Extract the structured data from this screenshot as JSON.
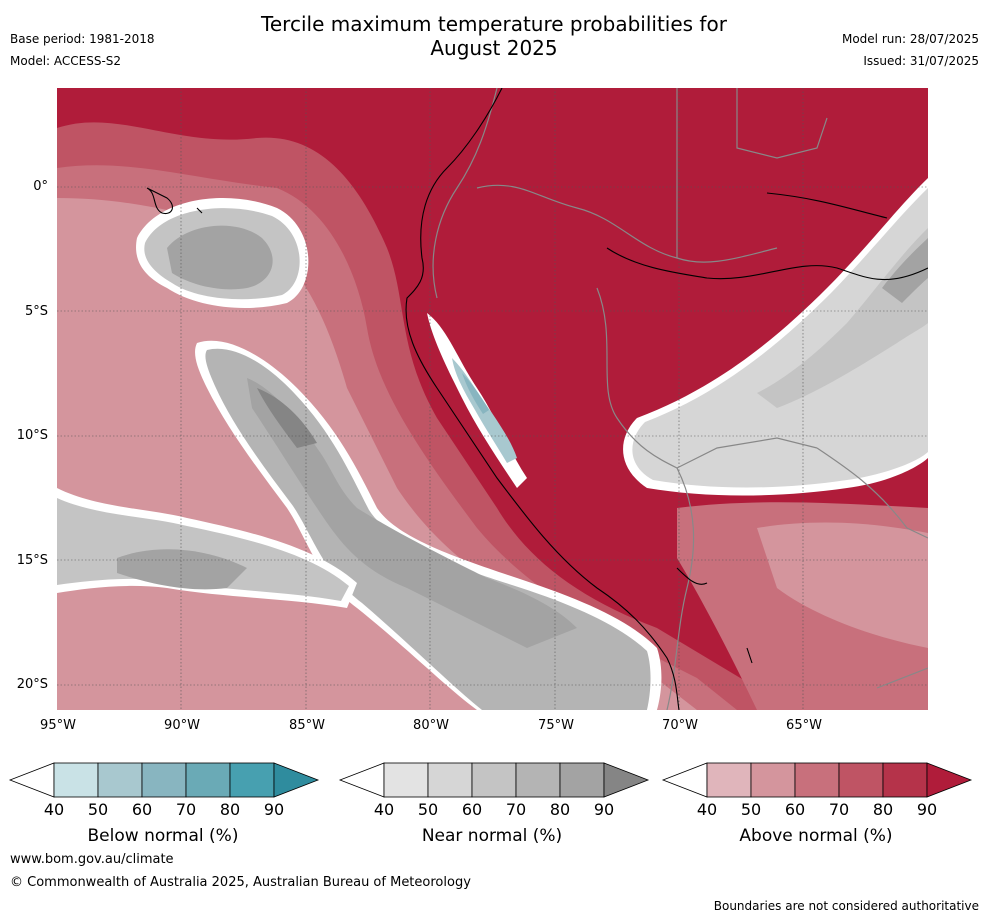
{
  "header": {
    "title_line1": "Tercile maximum temperature probabilities for",
    "title_line2": "August 2025",
    "base_period": "Base period: 1981-2018",
    "model": "Model: ACCESS-S2",
    "model_run": "Model run: 28/07/2025",
    "issued": "Issued: 31/07/2025"
  },
  "map": {
    "lat_ticks": [
      "0°",
      "5°S",
      "10°S",
      "15°S",
      "20°S"
    ],
    "lon_ticks": [
      "95°W",
      "90°W",
      "85°W",
      "80°W",
      "75°W",
      "70°W",
      "65°W"
    ],
    "extent": {
      "lon_min": -95,
      "lon_max": -60,
      "lat_min": -21,
      "lat_max": 4
    }
  },
  "colorbars": [
    {
      "label": "Below normal (%)",
      "ticks": [
        "40",
        "50",
        "60",
        "70",
        "80",
        "90"
      ],
      "colors": [
        "#c9e2e6",
        "#a8c8cf",
        "#88b5c0",
        "#6aaab6",
        "#47a0b0",
        "#2f8c9e"
      ]
    },
    {
      "label": "Near normal (%)",
      "ticks": [
        "40",
        "50",
        "60",
        "70",
        "80",
        "90"
      ],
      "colors": [
        "#e3e3e3",
        "#d6d6d6",
        "#c4c4c4",
        "#b4b4b4",
        "#a3a3a3",
        "#858585"
      ]
    },
    {
      "label": "Above normal (%)",
      "ticks": [
        "40",
        "50",
        "60",
        "70",
        "80",
        "90"
      ],
      "colors": [
        "#e0b5bb",
        "#d4959d",
        "#c8707c",
        "#bf5464",
        "#b5334a",
        "#b01c3a"
      ]
    }
  ],
  "footer": {
    "url": "www.bom.gov.au/climate",
    "copyright": "© Commonwealth of Australia 2025, Australian Bureau of Meteorology",
    "note": "Boundaries are not considered authoritative"
  }
}
